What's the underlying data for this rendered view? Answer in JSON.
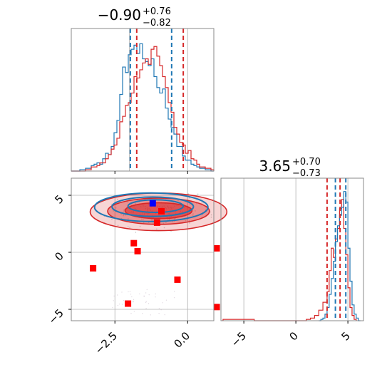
{
  "chart_data": {
    "type": "corner",
    "colors": {
      "series_a": "#1f77b4",
      "series_b": "#d62728",
      "marker_dark": "#0000ff",
      "marker_red": "#ff0000",
      "grid": "#b0b0b0"
    },
    "panels": {
      "top_left": {
        "type": "histogram",
        "title": {
          "main": "−0.90",
          "plus": "+0.76",
          "minus": "−0.82"
        },
        "xlim": [
          -4.0,
          0.9
        ],
        "quantiles_blue": [
          -1.97,
          -0.55
        ],
        "quantiles_red": [
          -1.75,
          -0.15
        ],
        "grid_x": [
          -2.0,
          0.0
        ],
        "hist_blue": [
          0,
          0,
          0,
          0.01,
          0.01,
          0.02,
          0.02,
          0.04,
          0.05,
          0.06,
          0.05,
          0.09,
          0.13,
          0.12,
          0.18,
          0.28,
          0.37,
          0.56,
          0.76,
          0.72,
          0.85,
          0.89,
          0.92,
          0.86,
          0.93,
          0.82,
          0.8,
          0.77,
          0.82,
          0.69,
          0.61,
          0.57,
          0.6,
          0.46,
          0.38,
          0.32,
          0.27,
          0.18,
          0.18,
          0.11,
          0.08,
          0.08,
          0.05,
          0.04,
          0.03,
          0.02,
          0.02,
          0.01,
          0.01,
          0.0
        ],
        "hist_red": [
          0,
          0,
          0,
          0,
          0,
          0.01,
          0.01,
          0.03,
          0.03,
          0.04,
          0.06,
          0.06,
          0.09,
          0.12,
          0.16,
          0.19,
          0.24,
          0.36,
          0.4,
          0.48,
          0.5,
          0.57,
          0.69,
          0.68,
          0.74,
          0.79,
          0.82,
          0.78,
          0.89,
          0.91,
          0.84,
          0.77,
          0.69,
          0.61,
          0.5,
          0.43,
          0.32,
          0.27,
          0.21,
          0.19,
          0.13,
          0.15,
          0.09,
          0.08,
          0.05,
          0.03,
          0.03,
          0.02,
          0.02,
          0.01
        ]
      },
      "bottom_left": {
        "type": "contour_scatter",
        "xlim": [
          -4.0,
          0.9
        ],
        "ylim": [
          -6.0,
          6.5
        ],
        "xticks": [
          -2.5,
          0.0
        ],
        "xtick_labels": [
          "−2.5",
          "0.0"
        ],
        "yticks": [
          -5,
          0,
          5
        ],
        "ytick_labels": [
          "−5",
          "0",
          "5"
        ],
        "grid_x": [
          -2.5,
          0.0
        ],
        "grid_y": [
          -5,
          0,
          5
        ],
        "red_contours": [
          {
            "cx": -1.0,
            "cy": 3.65,
            "rx": 1.15,
            "ry": 0.7,
            "opacity": 0.85
          },
          {
            "cx": -1.0,
            "cy": 3.6,
            "rx": 1.75,
            "ry": 1.15,
            "opacity": 0.55
          },
          {
            "cx": -1.0,
            "cy": 3.55,
            "rx": 2.35,
            "ry": 1.65,
            "opacity": 0.28
          }
        ],
        "blue_contours": [
          {
            "cx": -1.1,
            "cy": 4.05,
            "rx": 0.95,
            "ry": 0.55
          },
          {
            "cx": -1.2,
            "cy": 4.0,
            "rx": 1.4,
            "ry": 0.85
          },
          {
            "cx": -1.25,
            "cy": 3.95,
            "rx": 1.95,
            "ry": 1.25
          }
        ],
        "markers_red": [
          {
            "x": -3.25,
            "y": -1.4
          },
          {
            "x": -1.85,
            "y": 0.8
          },
          {
            "x": -1.72,
            "y": 0.1
          },
          {
            "x": -2.05,
            "y": -4.5
          },
          {
            "x": -0.35,
            "y": -2.4
          },
          {
            "x": 1.0,
            "y": 0.35
          },
          {
            "x": 1.0,
            "y": -4.8
          },
          {
            "x": -0.9,
            "y": 3.6
          },
          {
            "x": -1.05,
            "y": 2.6
          }
        ],
        "markers_blue": [
          {
            "x": -1.2,
            "y": 4.3
          }
        ]
      },
      "bottom_right": {
        "type": "histogram",
        "title": {
          "main": "3.65",
          "plus": "+0.70",
          "minus": "−0.73"
        },
        "xlim": [
          -7.2,
          6.5
        ],
        "xticks": [
          -5,
          0,
          5
        ],
        "xtick_labels": [
          "−5",
          "0",
          "5"
        ],
        "grid_x": [
          -5,
          0,
          5
        ],
        "quantiles_blue": [
          3.8,
          4.8
        ],
        "quantiles_red": [
          3.0,
          4.25
        ],
        "hist_blue_x": [
          2.2,
          2.4,
          2.6,
          2.8,
          3.0,
          3.2,
          3.4,
          3.6,
          3.8,
          4.0,
          4.2,
          4.4,
          4.6,
          4.8,
          5.0,
          5.2,
          5.4,
          5.6,
          5.8,
          6.0
        ],
        "hist_blue": [
          0.0,
          0.01,
          0.02,
          0.05,
          0.1,
          0.2,
          0.32,
          0.45,
          0.6,
          0.72,
          0.8,
          0.86,
          0.98,
          0.9,
          0.55,
          0.3,
          0.12,
          0.05,
          0.02,
          0.0
        ],
        "hist_red_x": [
          -7.0,
          -6.0,
          -5.0,
          -4.0,
          -3.0,
          -2.0,
          -1.0,
          0.0,
          1.0,
          1.4,
          1.8,
          2.2,
          2.6,
          3.0,
          3.2,
          3.4,
          3.6,
          3.8,
          4.0,
          4.2,
          4.4,
          4.6,
          4.8,
          5.0,
          5.2,
          5.4,
          5.6
        ],
        "hist_red": [
          0.01,
          0.01,
          0.01,
          0.0,
          0.0,
          0.0,
          0.0,
          0.0,
          0.01,
          0.02,
          0.04,
          0.08,
          0.14,
          0.22,
          0.38,
          0.55,
          0.48,
          0.62,
          0.7,
          0.85,
          0.92,
          0.7,
          0.5,
          0.25,
          0.1,
          0.04,
          0.01
        ]
      }
    }
  }
}
